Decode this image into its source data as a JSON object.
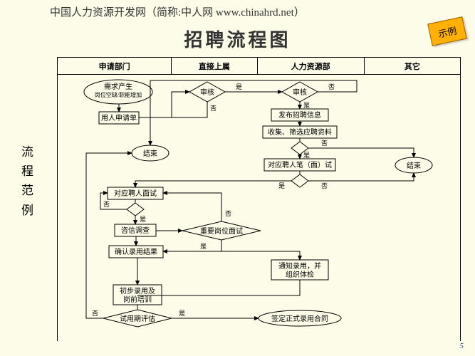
{
  "header_text": "中国人力资源开发网（简称:中人网 www.chinahrd.net）",
  "title": "招聘流程图",
  "badge": "示例",
  "side_label": "流程范例",
  "page_number": "5",
  "columns": [
    {
      "label": "申请部门",
      "width": 160
    },
    {
      "label": "直接上属",
      "width": 120
    },
    {
      "label": "人力资源部",
      "width": 150
    },
    {
      "label": "其它",
      "width": 135
    }
  ],
  "yes": "是",
  "no": "否",
  "nodes": {
    "n1a": "需求产生",
    "n1b": "岗位空缺/职能增加",
    "n2": "用人申请单",
    "d1": "审核",
    "d2": "审核",
    "n3": "发布招聘信息",
    "n4": "收集、筛选应聘资料",
    "d3": "",
    "n5": "对应聘人笔（面）试",
    "d4": "",
    "end1": "结束",
    "end2": "结束",
    "n6": "对应聘人面试",
    "d5": "",
    "n7": "咨信调查",
    "d6": "重要岗位面试",
    "n8": "确认录用结果",
    "n9": "通知录用，并组织体检",
    "n10": "初步录用及岗前培训",
    "d7": "试用期评估",
    "n11": "签定正式录用合同"
  },
  "colors": {
    "bg": "#fdfce9",
    "line": "#000000",
    "badge": "#ffb000"
  }
}
